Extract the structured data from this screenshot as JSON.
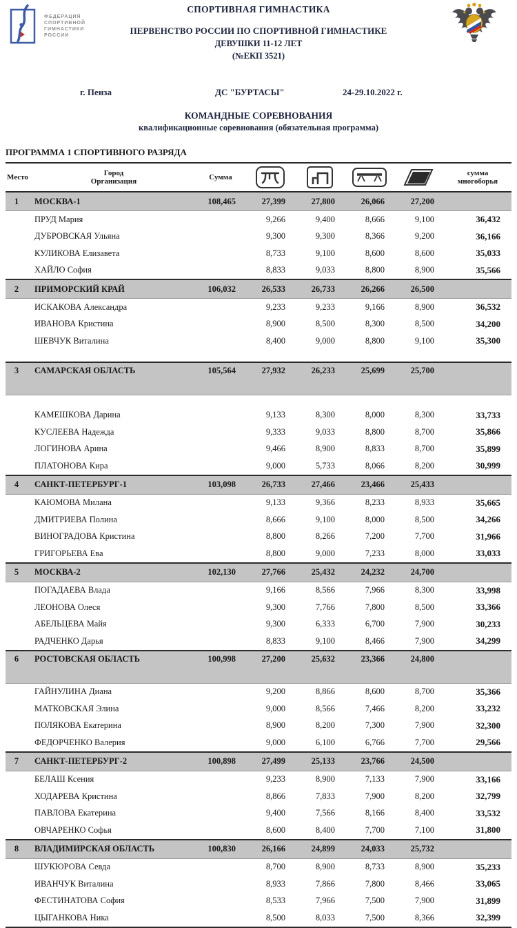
{
  "header": {
    "federation_logo_text": [
      "ФЕДЕРАЦИЯ",
      "СПОРТИВНОЙ",
      "ГИМНАСТИКИ",
      "РОССИИ"
    ],
    "title1": "СПОРТИВНАЯ ГИМНАСТИКА",
    "title2": "ПЕРВЕНСТВО РОССИИ ПО СПОРТИВНОЙ ГИМНАСТИКЕ",
    "title3": "ДЕВУШКИ 11-12 ЛЕТ",
    "title4": "(№ЕКП 3521)",
    "city": "г. Пенза",
    "venue": "ДС \"БУРТАСЫ\"",
    "dates": "24-29.10.2022 г.",
    "event_type": "КОМАНДНЫЕ СОРЕВНОВАНИЯ",
    "event_subtype": "квалификационные соревнования (обязательная  программа)",
    "section_title": "ПРОГРАММА 1 СПОРТИВНОГО РАЗРЯДА"
  },
  "colors": {
    "team_row_bg": "#c4c4c4",
    "border": "#2b2b2b",
    "logo_blue": "#3c5ba6",
    "logo_red": "#c8322e",
    "eagle_gold": "#d9a520",
    "tricolor": [
      "#ffffff",
      "#2f55a4",
      "#d52b1e"
    ]
  },
  "table": {
    "columns": {
      "place": "Место",
      "team_line1": "Город",
      "team_line2": "Организация",
      "sum": "Сумма",
      "all_around_line1": "сумма",
      "all_around_line2": "многоборья"
    },
    "apparatus_icons": [
      "vault-icon",
      "uneven-bars-icon",
      "balance-beam-icon",
      "floor-icon"
    ],
    "teams": [
      {
        "place": "1",
        "name": "МОСКВА-1",
        "total": "108,465",
        "scores": [
          "27,399",
          "27,800",
          "26,066",
          "27,200"
        ],
        "athletes": [
          {
            "name": "ПРУД Мария",
            "scores": [
              "9,266",
              "9,400",
              "8,666",
              "9,100"
            ],
            "all_around": "36,432"
          },
          {
            "name": "ДУБРОВСКАЯ Ульяна",
            "scores": [
              "9,300",
              "9,300",
              "8,366",
              "9,200"
            ],
            "all_around": "36,166"
          },
          {
            "name": "КУЛИКОВА Елизавета",
            "scores": [
              "8,733",
              "9,100",
              "8,600",
              "8,600"
            ],
            "all_around": "35,033"
          },
          {
            "name": "ХАЙЛО София",
            "scores": [
              "8,833",
              "9,033",
              "8,800",
              "8,900"
            ],
            "all_around": "35,566"
          }
        ]
      },
      {
        "place": "2",
        "name": "ПРИМОРСКИЙ КРАЙ",
        "total": "106,032",
        "scores": [
          "26,533",
          "26,733",
          "26,266",
          "26,500"
        ],
        "blank_after": true,
        "athletes": [
          {
            "name": "ИСКАКОВА Александра",
            "scores": [
              "9,233",
              "9,233",
              "9,166",
              "8,900"
            ],
            "all_around": "36,532"
          },
          {
            "name": "ИВАНОВА Кристина",
            "scores": [
              "8,900",
              "8,500",
              "8,300",
              "8,500"
            ],
            "all_around": "34,200"
          },
          {
            "name": "ШЕВЧУК Виталина",
            "scores": [
              "8,400",
              "9,000",
              "8,800",
              "9,100"
            ],
            "all_around": "35,300"
          }
        ]
      },
      {
        "place": "3",
        "name": "САМАРСКАЯ ОБЛАСТЬ",
        "total": "105,564",
        "scores": [
          "27,932",
          "26,233",
          "25,699",
          "25,700"
        ],
        "tall_header": true,
        "blank_before_athletes": true,
        "athletes": [
          {
            "name": "КАМЕШКОВА Дарина",
            "scores": [
              "9,133",
              "8,300",
              "8,000",
              "8,300"
            ],
            "all_around": "33,733"
          },
          {
            "name": "КУСЛЕЕВА Надежда",
            "scores": [
              "9,333",
              "9,033",
              "8,800",
              "8,700"
            ],
            "all_around": "35,866"
          },
          {
            "name": "ЛОГИНОВА Арина",
            "scores": [
              "9,466",
              "8,900",
              "8,833",
              "8,700"
            ],
            "all_around": "35,899"
          },
          {
            "name": "ПЛАТОНОВА Кира",
            "scores": [
              "9,000",
              "5,733",
              "8,066",
              "8,200"
            ],
            "all_around": "30,999"
          }
        ]
      },
      {
        "place": "4",
        "name": "САНКТ-ПЕТЕРБУРГ-1",
        "total": "103,098",
        "scores": [
          "26,733",
          "27,466",
          "23,466",
          "25,433"
        ],
        "athletes": [
          {
            "name": "КАЮМОВА Милана",
            "scores": [
              "9,133",
              "9,366",
              "8,233",
              "8,933"
            ],
            "all_around": "35,665"
          },
          {
            "name": "ДМИТРИЕВА Полина",
            "scores": [
              "8,666",
              "9,100",
              "8,000",
              "8,500"
            ],
            "all_around": "34,266"
          },
          {
            "name": "ВИНОГРАДОВА Кристина",
            "scores": [
              "8,800",
              "8,266",
              "7,200",
              "7,700"
            ],
            "all_around": "31,966"
          },
          {
            "name": "ГРИГОРЬЕВА Ева",
            "scores": [
              "8,800",
              "9,000",
              "7,233",
              "8,000"
            ],
            "all_around": "33,033"
          }
        ]
      },
      {
        "place": "5",
        "name": "МОСКВА-2",
        "total": "102,130",
        "scores": [
          "27,766",
          "25,432",
          "24,232",
          "24,700"
        ],
        "athletes": [
          {
            "name": "ПОГАДАЕВА Влада",
            "scores": [
              "9,166",
              "8,566",
              "7,966",
              "8,300"
            ],
            "all_around": "33,998"
          },
          {
            "name": "ЛЕОНОВА Олеся",
            "scores": [
              "9,300",
              "7,766",
              "7,800",
              "8,500"
            ],
            "all_around": "33,366"
          },
          {
            "name": "АБЕЛЬЦЕВА Майя",
            "scores": [
              "9,300",
              "6,333",
              "6,700",
              "7,900"
            ],
            "all_around": "30,233"
          },
          {
            "name": "РАДЧЕНКО Дарья",
            "scores": [
              "8,833",
              "9,100",
              "8,466",
              "7,900"
            ],
            "all_around": "34,299"
          }
        ]
      },
      {
        "place": "6",
        "name": "РОСТОВСКАЯ ОБЛАСТЬ",
        "total": "100,998",
        "scores": [
          "27,200",
          "25,632",
          "23,366",
          "24,800"
        ],
        "tall_header": true,
        "athletes": [
          {
            "name": "ГАЙНУЛИНА Диана",
            "scores": [
              "9,200",
              "8,866",
              "8,600",
              "8,700"
            ],
            "all_around": "35,366"
          },
          {
            "name": "МАТКОВСКАЯ Элина",
            "scores": [
              "9,000",
              "8,566",
              "7,466",
              "8,200"
            ],
            "all_around": "33,232"
          },
          {
            "name": "ПОЛЯКОВА Екатерина",
            "scores": [
              "8,900",
              "8,200",
              "7,300",
              "7,900"
            ],
            "all_around": "32,300"
          },
          {
            "name": "ФЕДОРЧЕНКО Валерия",
            "scores": [
              "9,000",
              "6,100",
              "6,766",
              "7,700"
            ],
            "all_around": "29,566"
          }
        ]
      },
      {
        "place": "7",
        "name": "САНКТ-ПЕТЕРБУРГ-2",
        "total": "100,898",
        "scores": [
          "27,499",
          "25,133",
          "23,766",
          "24,500"
        ],
        "athletes": [
          {
            "name": "БЕЛАШ Ксения",
            "scores": [
              "9,233",
              "8,900",
              "7,133",
              "7,900"
            ],
            "all_around": "33,166"
          },
          {
            "name": "ХОДАРЕВА Кристина",
            "scores": [
              "8,866",
              "7,833",
              "7,900",
              "8,200"
            ],
            "all_around": "32,799"
          },
          {
            "name": "ПАВЛОВА Екатерина",
            "scores": [
              "9,400",
              "7,566",
              "8,166",
              "8,400"
            ],
            "all_around": "33,532"
          },
          {
            "name": "ОВЧАРЕНКО Софья",
            "scores": [
              "8,600",
              "8,400",
              "7,700",
              "7,100"
            ],
            "all_around": "31,800"
          }
        ]
      },
      {
        "place": "8",
        "name": "ВЛАДИМИРСКАЯ ОБЛАСТЬ",
        "total": "100,830",
        "scores": [
          "26,166",
          "24,899",
          "24,033",
          "25,732"
        ],
        "athletes": [
          {
            "name": "ШУКЮРОВА Севда",
            "scores": [
              "8,700",
              "8,900",
              "8,733",
              "8,900"
            ],
            "all_around": "35,233"
          },
          {
            "name": "ИВАНЧУК Виталина",
            "scores": [
              "8,933",
              "7,866",
              "7,800",
              "8,466"
            ],
            "all_around": "33,065"
          },
          {
            "name": "ФЕСТИНАТОВА София",
            "scores": [
              "8,533",
              "7,966",
              "7,500",
              "7,900"
            ],
            "all_around": "31,899"
          },
          {
            "name": "ЦЫГАНКОВА Ника",
            "scores": [
              "8,500",
              "8,033",
              "7,500",
              "8,366"
            ],
            "all_around": "32,399"
          }
        ]
      }
    ]
  }
}
